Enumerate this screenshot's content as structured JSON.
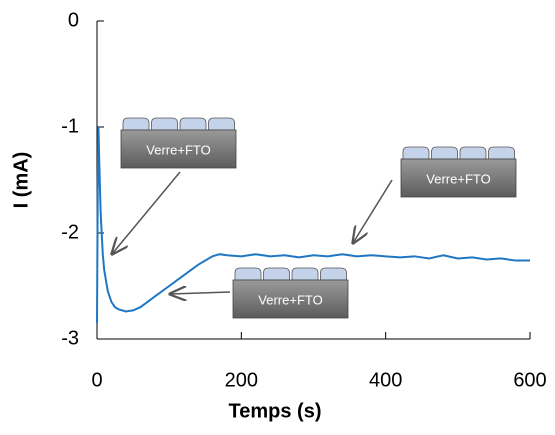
{
  "chart_data": {
    "type": "line",
    "xlabel": "Temps (s)",
    "ylabel": "I (mA)",
    "x": [
      0,
      1,
      2,
      3,
      5,
      8,
      10,
      15,
      20,
      25,
      30,
      40,
      50,
      60,
      70,
      80,
      100,
      120,
      140,
      160,
      170,
      180,
      200,
      220,
      240,
      260,
      280,
      300,
      320,
      340,
      360,
      380,
      400,
      420,
      440,
      460,
      480,
      500,
      520,
      540,
      560,
      580,
      600
    ],
    "series": [
      {
        "color": "#1f77c4",
        "values": [
          -2.85,
          -1.6,
          -1.0,
          -1.3,
          -1.8,
          -2.2,
          -2.35,
          -2.55,
          -2.65,
          -2.7,
          -2.72,
          -2.74,
          -2.73,
          -2.7,
          -2.65,
          -2.6,
          -2.5,
          -2.4,
          -2.3,
          -2.22,
          -2.2,
          -2.21,
          -2.22,
          -2.2,
          -2.22,
          -2.21,
          -2.23,
          -2.21,
          -2.22,
          -2.2,
          -2.22,
          -2.21,
          -2.22,
          -2.23,
          -2.22,
          -2.24,
          -2.21,
          -2.24,
          -2.23,
          -2.25,
          -2.24,
          -2.26,
          -2.26
        ]
      }
    ],
    "xlim": [
      0,
      600
    ],
    "xticks": [
      0,
      200,
      400,
      600
    ],
    "ylim": [
      -3,
      0
    ],
    "yticks": [
      0,
      -1,
      -2,
      -3
    ],
    "annotations": [
      "Verre+FTO",
      "Verre+FTO",
      "Verre+FTO"
    ]
  }
}
